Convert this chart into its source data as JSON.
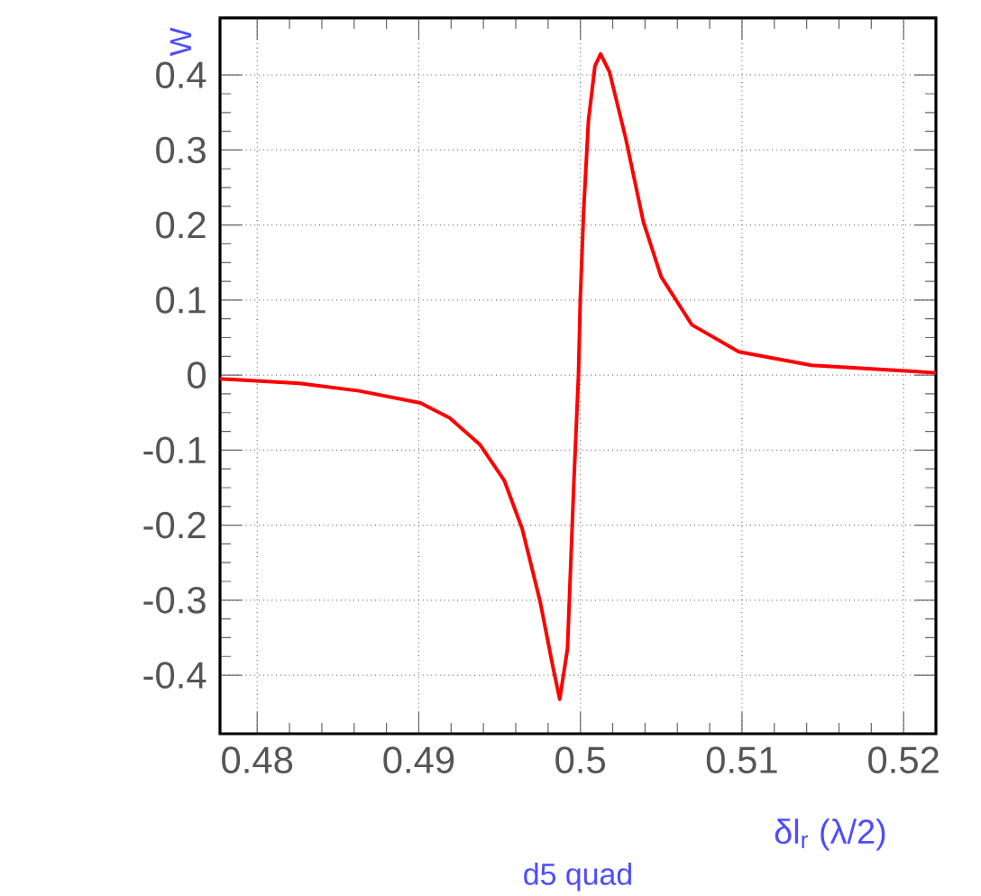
{
  "chart_data": {
    "type": "line",
    "xlabel": "δl$_{r}$ (λ/2)",
    "ylabel": "W",
    "annotations": [
      "d5 quad"
    ],
    "x": [
      0.4777,
      0.4826,
      0.4863,
      0.4901,
      0.4919,
      0.4938,
      0.4953,
      0.4964,
      0.4975,
      0.4983,
      0.49872,
      0.4992,
      0.4996,
      0.49988,
      0.49999,
      0.5002,
      0.5005,
      0.5009,
      0.50125,
      0.5018,
      0.5028,
      0.5039,
      0.505,
      0.5069,
      0.5098,
      0.5143,
      0.5199,
      0.522
    ],
    "series": [
      {
        "color": "#ff0000",
        "values": [
          -0.005,
          -0.011,
          -0.021,
          -0.037,
          -0.057,
          -0.093,
          -0.141,
          -0.205,
          -0.301,
          -0.389,
          -0.432,
          -0.365,
          -0.141,
          0.0,
          0.099,
          0.219,
          0.34,
          0.412,
          0.428,
          0.404,
          0.316,
          0.204,
          0.131,
          0.067,
          0.031,
          0.013,
          0.006,
          0.003
        ]
      }
    ],
    "xlim": [
      0.4777,
      0.522
    ],
    "ylim": [
      -0.478,
      0.476
    ],
    "xticks": [
      0.48,
      0.49,
      0.5,
      0.51,
      0.52
    ],
    "yticks": [
      -0.4,
      -0.3,
      -0.2,
      -0.1,
      0,
      0.1,
      0.2,
      0.3,
      0.4
    ],
    "grid": true,
    "line_style": "solid",
    "marker": "none"
  }
}
